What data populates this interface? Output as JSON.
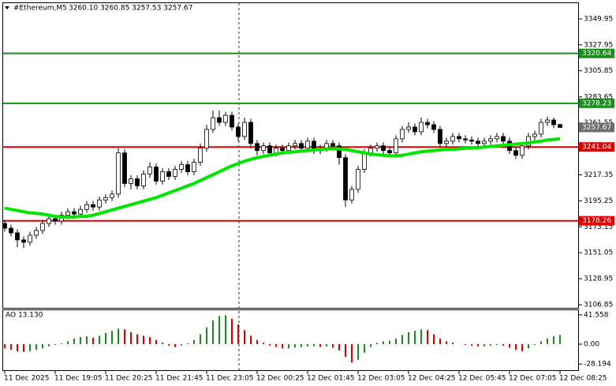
{
  "chart_data": [
    {
      "type": "candlestick",
      "title": "#Ethereum,M5",
      "subtitle": "3260.10 3260.85 3257.53 3257.67",
      "categories": [
        "11 Dec 2025",
        null,
        null,
        null,
        null,
        null,
        null,
        null,
        "11 Dec 19:05",
        null,
        null,
        null,
        null,
        null,
        null,
        null,
        "11 Dec 20:25",
        null,
        null,
        null,
        null,
        null,
        null,
        null,
        "11 Dec 21:45",
        null,
        null,
        null,
        null,
        null,
        null,
        null,
        "11 Dec 23:05",
        null,
        null,
        null,
        null,
        null,
        null,
        null,
        "12 Dec 00:25",
        null,
        null,
        null,
        null,
        null,
        null,
        null,
        "12 Dec 01:45",
        null,
        null,
        null,
        null,
        null,
        null,
        null,
        "12 Dec 03:05",
        null,
        null,
        null,
        null,
        null,
        null,
        null,
        "12 Dec 04:25",
        null,
        null,
        null,
        null,
        null,
        null,
        null,
        "12 Dec 05:45",
        null,
        null,
        null,
        null,
        null,
        null,
        null,
        "12 Dec 07:05",
        null,
        null,
        null,
        null,
        null,
        null,
        null,
        "12 Dec 08:25"
      ],
      "open": [
        3176,
        3172,
        3168,
        3162,
        3160,
        3166,
        3170,
        3176,
        3180,
        3178,
        3183,
        3186,
        3184,
        3188,
        3192,
        3190,
        3196,
        3198,
        3201,
        3236,
        3210,
        3214,
        3208,
        3218,
        3224,
        3212,
        3220,
        3216,
        3222,
        3226,
        3220,
        3228,
        3240,
        3256,
        3266,
        3262,
        3268,
        3258,
        3250,
        3262,
        3244,
        3238,
        3242,
        3236,
        3240,
        3238,
        3242,
        3244,
        3240,
        3246,
        3238,
        3240,
        3244,
        3242,
        3232,
        3196,
        3205,
        3222,
        3236,
        3240,
        3242,
        3238,
        3236,
        3248,
        3256,
        3258,
        3254,
        3262,
        3260,
        3256,
        3244,
        3246,
        3250,
        3248,
        3247,
        3246,
        3244,
        3246,
        3248,
        3250,
        3246,
        3238,
        3234,
        3242,
        3250,
        3252,
        3262,
        3264,
        3260.1
      ],
      "high": [
        3179,
        3175,
        3171,
        3165,
        3169,
        3173,
        3179,
        3183,
        3183,
        3186,
        3189,
        3189,
        3191,
        3195,
        3195,
        3199,
        3201,
        3204,
        3240,
        3239,
        3217,
        3217,
        3221,
        3228,
        3227,
        3223,
        3223,
        3225,
        3229,
        3229,
        3231,
        3244,
        3260,
        3272,
        3272,
        3271,
        3271,
        3261,
        3266,
        3265,
        3247,
        3245,
        3245,
        3243,
        3243,
        3245,
        3247,
        3247,
        3249,
        3249,
        3243,
        3247,
        3247,
        3245,
        3235,
        3208,
        3225,
        3239,
        3243,
        3245,
        3245,
        3241,
        3251,
        3259,
        3262,
        3261,
        3266,
        3265,
        3263,
        3259,
        3249,
        3253,
        3253,
        3251,
        3250,
        3249,
        3249,
        3251,
        3253,
        3253,
        3249,
        3241,
        3245,
        3253,
        3255,
        3265,
        3267,
        3266,
        3260.85
      ],
      "low": [
        3169,
        3165,
        3156,
        3155,
        3157,
        3163,
        3167,
        3173,
        3175,
        3175,
        3180,
        3181,
        3181,
        3185,
        3187,
        3187,
        3193,
        3195,
        3198,
        3207,
        3205,
        3205,
        3205,
        3215,
        3209,
        3209,
        3213,
        3213,
        3219,
        3217,
        3217,
        3225,
        3237,
        3253,
        3259,
        3259,
        3255,
        3246,
        3247,
        3240,
        3234,
        3235,
        3233,
        3233,
        3235,
        3235,
        3239,
        3237,
        3237,
        3235,
        3235,
        3237,
        3239,
        3226,
        3190,
        3193,
        3202,
        3219,
        3233,
        3237,
        3235,
        3233,
        3233,
        3245,
        3253,
        3251,
        3251,
        3257,
        3253,
        3241,
        3241,
        3243,
        3245,
        3244,
        3243,
        3241,
        3241,
        3243,
        3245,
        3243,
        3235,
        3231,
        3231,
        3239,
        3247,
        3249,
        3259,
        3257,
        3257.53
      ],
      "close": [
        3172,
        3168,
        3162,
        3160,
        3166,
        3170,
        3176,
        3180,
        3178,
        3183,
        3186,
        3184,
        3188,
        3192,
        3190,
        3196,
        3198,
        3201,
        3236,
        3210,
        3214,
        3208,
        3218,
        3224,
        3212,
        3220,
        3216,
        3222,
        3226,
        3220,
        3228,
        3240,
        3256,
        3266,
        3262,
        3268,
        3258,
        3250,
        3262,
        3244,
        3238,
        3242,
        3236,
        3240,
        3238,
        3242,
        3244,
        3240,
        3246,
        3238,
        3240,
        3244,
        3242,
        3232,
        3196,
        3205,
        3222,
        3236,
        3240,
        3242,
        3238,
        3236,
        3248,
        3256,
        3258,
        3254,
        3262,
        3260,
        3256,
        3244,
        3246,
        3250,
        3248,
        3247,
        3246,
        3244,
        3246,
        3248,
        3250,
        3246,
        3238,
        3234,
        3242,
        3250,
        3252,
        3262,
        3264,
        3260,
        3257.67
      ],
      "overlay": {
        "color": "#00e600",
        "values": [
          3189,
          3188,
          3187,
          3186,
          3185,
          3184.5,
          3184,
          3183,
          3182,
          3181.5,
          3181.5,
          3181.5,
          3182,
          3182,
          3183,
          3184.5,
          3186,
          3187.5,
          3189,
          3190.5,
          3192,
          3193.5,
          3195,
          3196.5,
          3198,
          3200,
          3202,
          3204,
          3206,
          3208,
          3210,
          3212.5,
          3215,
          3217.5,
          3220,
          3222.5,
          3225,
          3227,
          3229,
          3230.5,
          3232,
          3233,
          3234,
          3235,
          3236,
          3236.5,
          3237,
          3237.5,
          3238,
          3238.5,
          3239,
          3239.5,
          3239.5,
          3239.5,
          3239,
          3238,
          3237,
          3236,
          3235,
          3234.5,
          3234,
          3233.5,
          3233.5,
          3234,
          3235,
          3236,
          3237,
          3237.5,
          3238,
          3238.5,
          3239,
          3239,
          3239.5,
          3240,
          3240,
          3240.5,
          3241,
          3241.5,
          3242,
          3242.5,
          3243,
          3243.5,
          3244,
          3244.5,
          3245.5,
          3246,
          3247,
          3247.5,
          3248
        ]
      },
      "levels": [
        {
          "value": 3320.64,
          "color": "#1e8c1e"
        },
        {
          "value": 3278.23,
          "color": "#1e8c1e"
        },
        {
          "value": 3241.04,
          "color": "#e00000"
        },
        {
          "value": 3178.26,
          "color": "#e00000"
        }
      ],
      "ylim": [
        3104.2,
        3363.4
      ],
      "yticks": [
        3349.95,
        3327.95,
        3305.85,
        3283.65,
        3261.55,
        3239.45,
        3217.35,
        3195.25,
        3173.15,
        3151.05,
        3128.95,
        3106.85
      ]
    },
    {
      "type": "ao",
      "title": "AO 13.130",
      "up_color": "#1e8c1e",
      "down_color": "#e00000",
      "values": [
        -6,
        -8,
        -10,
        -11,
        -10,
        -8,
        -6,
        -3,
        -1,
        1,
        4,
        8,
        10,
        11,
        9,
        12,
        16,
        19,
        22,
        21,
        17,
        14,
        12,
        10,
        6,
        2,
        -2,
        -4,
        -2,
        1,
        6,
        14,
        24,
        34,
        40,
        41,
        36,
        28,
        20,
        12,
        6,
        2,
        -2,
        -4,
        -6,
        -6,
        -5,
        -4,
        -3,
        -3,
        -4,
        -3,
        -5,
        -9,
        -18,
        -26,
        -22,
        -12,
        -4,
        2,
        4,
        5,
        8,
        13,
        17,
        19,
        21,
        20,
        14,
        8,
        4,
        2,
        0,
        -1,
        -2,
        -3,
        -3,
        -2,
        -1,
        -2,
        -5,
        -8,
        -10,
        -6,
        -1,
        4,
        8,
        11,
        13.13
      ],
      "ylim": [
        -36.9,
        48.1
      ],
      "yticks": [
        41.558,
        {
          "value": 0,
          "label": "0.00"
        },
        -28.194
      ]
    }
  ]
}
